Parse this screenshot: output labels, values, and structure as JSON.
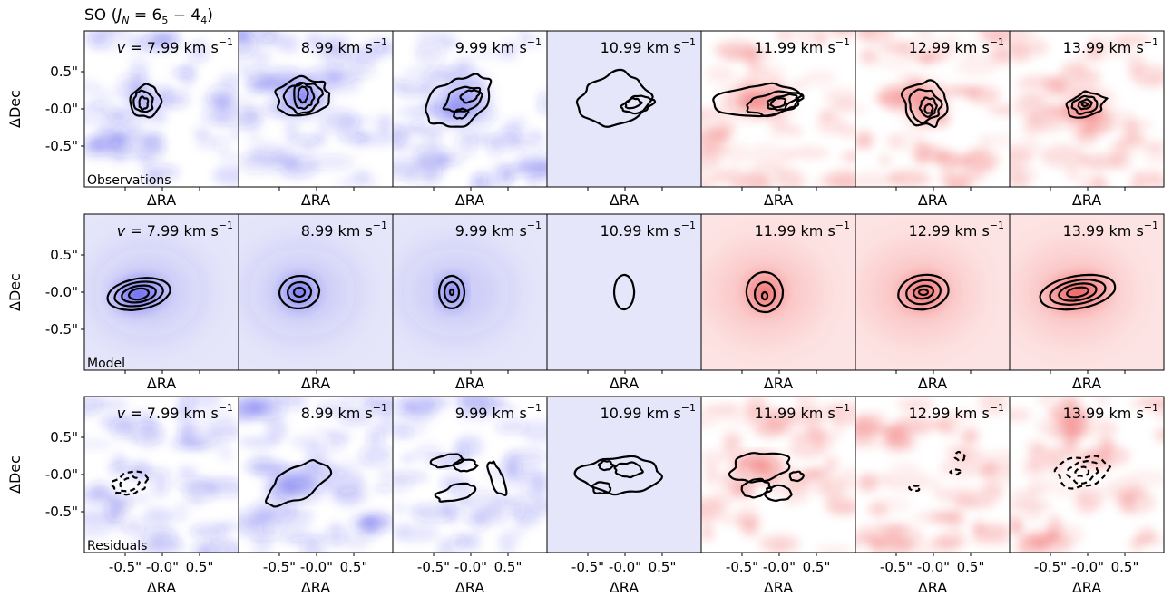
{
  "figure": {
    "title_prefix": "SO (",
    "title_var": "J",
    "title_sub": "N",
    "title_eq": " = 6",
    "title_sub2": "5",
    "title_minus": " − 4",
    "title_sub3": "4",
    "title_end": ")"
  },
  "colors": {
    "blue_wing": "#2020e8",
    "red_wing": "#e81010",
    "systemic_blue_bg": "#e6e6fa",
    "systemic_red_bg": "#fde4e4",
    "contour": "#000000"
  },
  "chart_data": {
    "type": "heatmap",
    "description_of_grid": "3 rows x 7 channel-map panels",
    "rows": [
      {
        "label": "Observations",
        "ylabel": "ΔDec"
      },
      {
        "label": "Model",
        "ylabel": "ΔDec"
      },
      {
        "label": "Residuals",
        "ylabel": "ΔDec"
      }
    ],
    "channels": [
      {
        "velocity_label": "7.99 km s",
        "prefix": "v = ",
        "show_prefix": true,
        "value": 7.99,
        "wing": "blue"
      },
      {
        "velocity_label": "8.99 km s",
        "prefix": "",
        "show_prefix": false,
        "value": 8.99,
        "wing": "blue"
      },
      {
        "velocity_label": "9.99 km s",
        "prefix": "",
        "show_prefix": false,
        "value": 9.99,
        "wing": "blue"
      },
      {
        "velocity_label": "10.99 km s",
        "prefix": "",
        "show_prefix": false,
        "value": 10.99,
        "wing": "systemic"
      },
      {
        "velocity_label": "11.99 km s",
        "prefix": "",
        "show_prefix": false,
        "value": 11.99,
        "wing": "red"
      },
      {
        "velocity_label": "12.99 km s",
        "prefix": "",
        "show_prefix": false,
        "value": 12.99,
        "wing": "red"
      },
      {
        "velocity_label": "13.99 km s",
        "prefix": "",
        "show_prefix": false,
        "value": 13.99,
        "wing": "red"
      }
    ],
    "unit_superscript": "−1",
    "xlabel": "ΔRA",
    "ylabel": "ΔDec",
    "y_ticks": [
      "0.5\"",
      "-0.0\"",
      "-0.5\""
    ],
    "x_ticks": [
      "-0.5\"",
      "-0.0\"",
      "0.5\""
    ],
    "x_range_arcsec": [
      -1.0,
      1.0
    ],
    "y_range_arcsec": [
      -1.0,
      1.0
    ]
  }
}
